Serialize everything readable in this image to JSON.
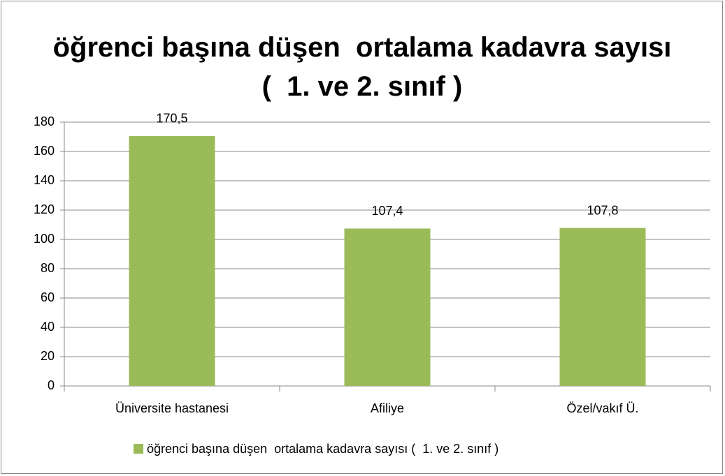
{
  "chart_data": {
    "type": "bar",
    "title": "öğrenci başına düşen  ortalama kadavra sayısı (  1. ve 2. sınıf )",
    "categories": [
      "Üniversite hastanesi",
      "Afiliye",
      "Özel/vakıf Ü."
    ],
    "series": [
      {
        "name": "öğrenci başına düşen  ortalama kadavra sayısı (  1. ve 2. sınıf )",
        "color": "#9bbb59",
        "values": [
          170.5,
          107.4,
          107.8
        ],
        "value_labels": [
          "170,5",
          "107,4",
          "107,8"
        ]
      }
    ],
    "ylim": [
      0,
      180
    ],
    "yticks": [
      0,
      20,
      40,
      60,
      80,
      100,
      120,
      140,
      160,
      180
    ],
    "grid": true,
    "legend": "bottom"
  }
}
